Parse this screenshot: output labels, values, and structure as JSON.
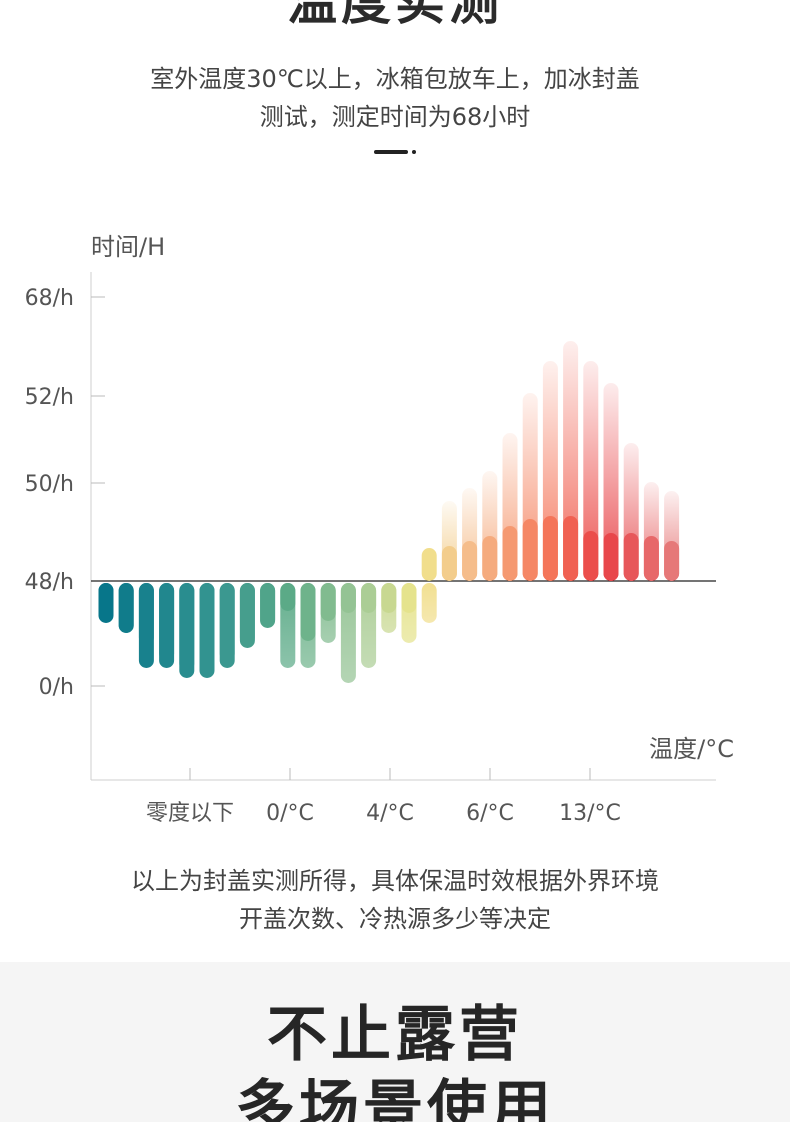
{
  "header": {
    "title": "温度实测",
    "desc_line1": "室外温度30℃以上，冰箱包放车上，加冰封盖",
    "desc_line2": "测试，测定时间为68小时"
  },
  "chart_data": {
    "type": "bar",
    "ylabel": "时间/H",
    "xlabel": "温度/°C",
    "ytick_labels": [
      "68/h",
      "52/h",
      "50/h",
      "48/h",
      "0/h"
    ],
    "xtick_labels": [
      "零度以下",
      "0/°C",
      "4/°C",
      "6/°C",
      "13/°C"
    ],
    "baseline_label": "48/h",
    "series": [
      {
        "values": [
          -0.4,
          -0.5,
          -0.85,
          -0.85,
          -0.95,
          -0.95,
          -0.85,
          -0.65,
          -0.45,
          -0.28,
          -0.58,
          -0.38,
          -0.3,
          -0.3,
          -0.3,
          -0.3,
          0.33,
          0.35,
          0.4,
          0.45,
          0.55,
          0.62,
          0.65,
          0.65,
          0.5,
          0.48,
          0.48,
          0.45,
          0.4
        ]
      },
      {
        "values": [
          -0.3,
          -0.5,
          -0.62,
          -0.78,
          -0.88,
          -0.88,
          -0.78,
          -0.62,
          -0.44,
          -0.85,
          -0.85,
          -0.6,
          -1.0,
          -0.85,
          -0.5,
          -0.6,
          -0.4,
          0.8,
          0.93,
          1.1,
          1.48,
          1.88,
          2.2,
          2.4,
          2.2,
          1.98,
          1.38,
          0.99,
          0.9
        ]
      }
    ]
  },
  "footer_note": {
    "line1": "以上为封盖实测所得，具体保温时效根据外界环境",
    "line2": "开盖次数、冷热源多少等决定"
  },
  "bottom": {
    "title_line1": "不止露营",
    "title_line2": "多场景使用"
  }
}
